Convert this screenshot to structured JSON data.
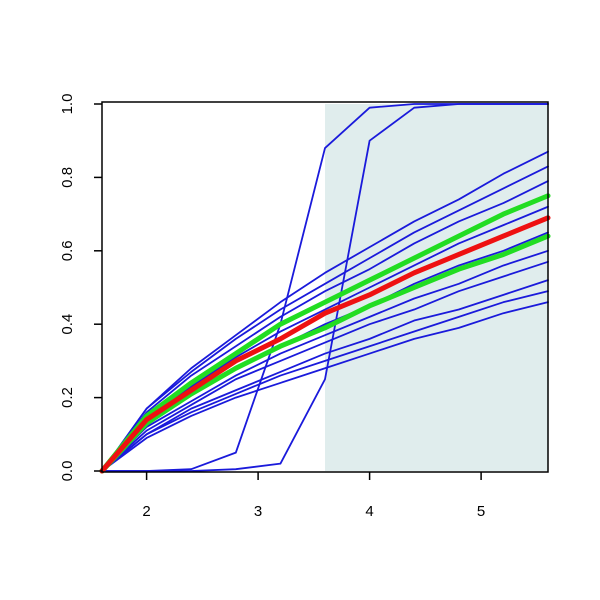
{
  "chart_data": {
    "type": "line",
    "x": [
      1.6,
      2.0,
      2.4,
      2.8,
      3.2,
      3.6,
      4.0,
      4.4,
      4.8,
      5.2,
      5.6
    ],
    "xlim": [
      1.6,
      5.6
    ],
    "ylim": [
      0,
      1
    ],
    "xticks": [
      2,
      3,
      4,
      5
    ],
    "yticks": [
      {
        "value": 0,
        "label": "0.0"
      },
      0.2,
      0.4,
      0.6,
      0.8,
      {
        "value": 1,
        "label": "1.0"
      }
    ],
    "shaded_region": [
      3.6,
      5.6
    ],
    "shaded_color": "#e0eded",
    "series": [
      {
        "color": "#1a1adb",
        "values": [
          0,
          0.17,
          0.28,
          0.37,
          0.46,
          0.54,
          0.61,
          0.68,
          0.74,
          0.81,
          0.87
        ]
      },
      {
        "color": "#1a1adb",
        "values": [
          0,
          0.17,
          0.27,
          0.36,
          0.44,
          0.51,
          0.58,
          0.65,
          0.71,
          0.77,
          0.83
        ]
      },
      {
        "color": "#1a1adb",
        "values": [
          0,
          0.16,
          0.26,
          0.34,
          0.42,
          0.49,
          0.55,
          0.62,
          0.68,
          0.73,
          0.79
        ]
      },
      {
        "color": "#1a1adb",
        "values": [
          0,
          0.14,
          0.23,
          0.31,
          0.38,
          0.44,
          0.5,
          0.56,
          0.62,
          0.67,
          0.72
        ]
      },
      {
        "color": "#1a1adb",
        "values": [
          0,
          0.13,
          0.21,
          0.28,
          0.34,
          0.4,
          0.45,
          0.51,
          0.56,
          0.6,
          0.65
        ]
      },
      {
        "color": "#1a1adb",
        "values": [
          0,
          0.12,
          0.19,
          0.26,
          0.32,
          0.37,
          0.42,
          0.47,
          0.51,
          0.56,
          0.6
        ]
      },
      {
        "color": "#1a1adb",
        "values": [
          0,
          0.11,
          0.18,
          0.25,
          0.3,
          0.35,
          0.4,
          0.44,
          0.49,
          0.53,
          0.57
        ]
      },
      {
        "color": "#1a1adb",
        "values": [
          0,
          0.1,
          0.17,
          0.22,
          0.27,
          0.32,
          0.36,
          0.41,
          0.44,
          0.48,
          0.52
        ]
      },
      {
        "color": "#1a1adb",
        "values": [
          0,
          0.1,
          0.16,
          0.21,
          0.26,
          0.3,
          0.34,
          0.38,
          0.42,
          0.46,
          0.49
        ]
      },
      {
        "color": "#1a1adb",
        "values": [
          0,
          0.09,
          0.15,
          0.2,
          0.24,
          0.28,
          0.32,
          0.36,
          0.39,
          0.43,
          0.46
        ]
      },
      {
        "color": "#1a1adb",
        "values": [
          0,
          0,
          0.005,
          0.05,
          0.4,
          0.88,
          0.99,
          1,
          1,
          1,
          1
        ]
      },
      {
        "color": "#1a1adb",
        "values": [
          0,
          0,
          0,
          0.005,
          0.02,
          0.25,
          0.9,
          0.99,
          1,
          1,
          1
        ]
      },
      {
        "color": "#22dd22",
        "values": [
          0,
          0.15,
          0.24,
          0.32,
          0.4,
          0.46,
          0.52,
          0.58,
          0.64,
          0.7,
          0.75
        ]
      },
      {
        "color": "#22dd22",
        "values": [
          0,
          0.13,
          0.21,
          0.28,
          0.34,
          0.39,
          0.45,
          0.5,
          0.55,
          0.59,
          0.64
        ]
      },
      {
        "color": "#ee1111",
        "values": [
          0,
          0.14,
          0.22,
          0.3,
          0.36,
          0.43,
          0.48,
          0.54,
          0.59,
          0.64,
          0.69
        ]
      }
    ]
  }
}
